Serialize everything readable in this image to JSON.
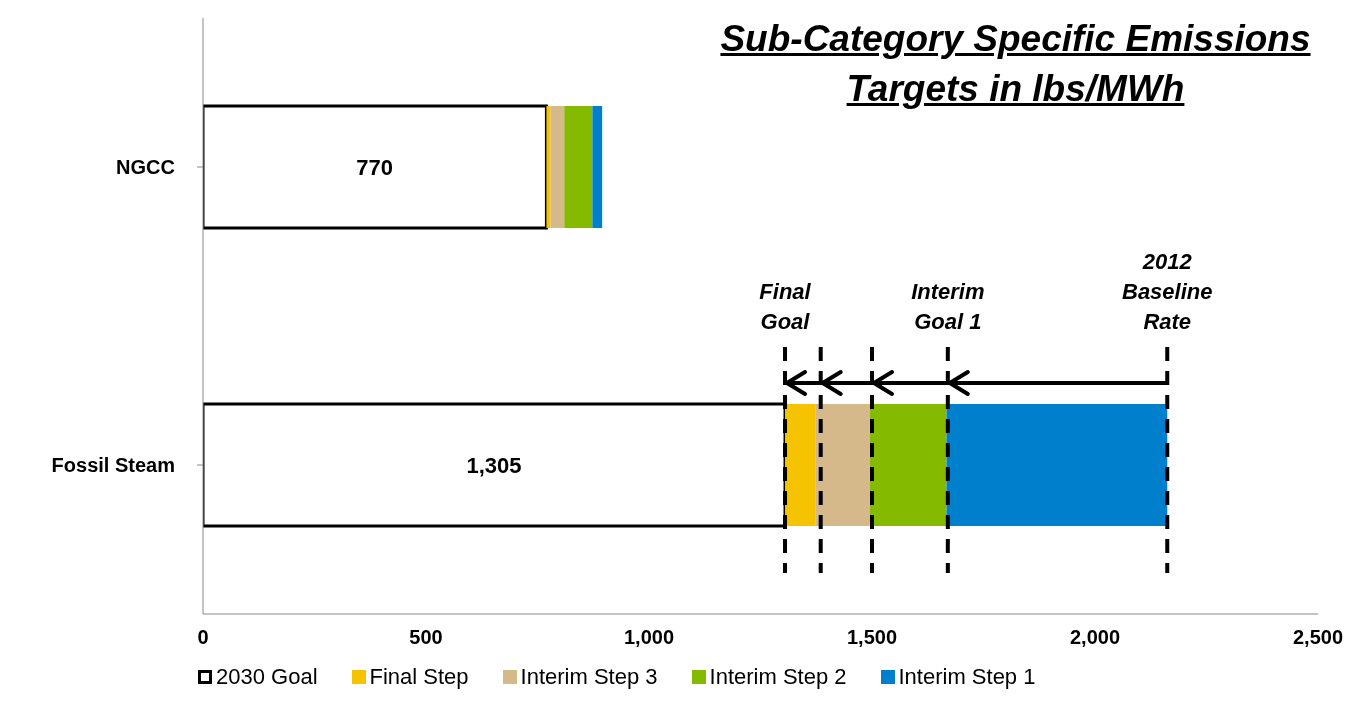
{
  "chart_data": {
    "type": "bar",
    "orientation": "horizontal",
    "stacked": true,
    "title": "Sub-Category Specific Emissions Targets in lbs/MWh",
    "categories": [
      "NGCC",
      "Fossil Steam"
    ],
    "series": [
      {
        "name": "2030 Goal",
        "color": "#ffffff",
        "values": [
          770,
          1305
        ],
        "value_labels": [
          "770",
          "1,305"
        ]
      },
      {
        "name": "Final Step",
        "color": "#f5c300",
        "values": [
          9,
          69
        ]
      },
      {
        "name": "Interim Step 3",
        "color": "#d5b98b",
        "values": [
          31,
          121
        ]
      },
      {
        "name": "Interim Step 2",
        "color": "#84bb00",
        "values": [
          63,
          172
        ]
      },
      {
        "name": "Interim Step 1",
        "color": "#0080cc",
        "values": [
          22,
          495
        ]
      }
    ],
    "xlim": [
      0,
      2500
    ],
    "xticks": [
      {
        "value": 0,
        "label": "0"
      },
      {
        "value": 500,
        "label": "500"
      },
      {
        "value": 1000,
        "label": "1,000"
      },
      {
        "value": 1500,
        "label": "1,500"
      },
      {
        "value": 2000,
        "label": "2,000"
      },
      {
        "value": 2500,
        "label": "2,500"
      }
    ],
    "ref_lines": [
      {
        "axis": "x",
        "value": 1305,
        "label": "Final Goal",
        "line_style": "dashed",
        "color": "#000000"
      },
      {
        "axis": "x",
        "value": 1385,
        "label": null,
        "line_style": "dashed",
        "color": "#000000"
      },
      {
        "axis": "x",
        "value": 1500,
        "label": null,
        "line_style": "dashed",
        "color": "#000000"
      },
      {
        "axis": "x",
        "value": 1670,
        "label": "Interim Goal 1",
        "line_style": "dashed",
        "color": "#000000"
      },
      {
        "axis": "x",
        "value": 2162,
        "label": "2012 Baseline Rate",
        "line_style": "dashed",
        "color": "#000000"
      }
    ],
    "legend": "bottom"
  }
}
